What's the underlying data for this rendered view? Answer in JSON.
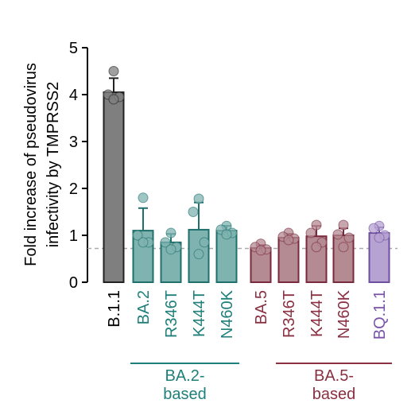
{
  "chart_data": {
    "type": "bar",
    "ylabel": "Fold increase of pseudovirus\ninfectivity by TMPRSS2",
    "ylim": [
      0,
      5
    ],
    "yticks": [
      "0",
      "1",
      "2",
      "3",
      "4",
      "5"
    ],
    "reference_line": 0.72,
    "categories": [
      {
        "label": "B.1.1",
        "mean": 4.05,
        "err": 0.3,
        "points": [
          4.5,
          4.0,
          3.95,
          3.9
        ],
        "color": "#7f7f7f",
        "edge": "#222222",
        "text": "#000000"
      },
      {
        "label": "BA.2",
        "mean": 1.1,
        "err": 0.48,
        "points": [
          1.8,
          1.0,
          0.85,
          0.85
        ],
        "color": "#7fb3b0",
        "edge": "#1f6f6c",
        "text": "#1f7f7a"
      },
      {
        "label": "R346T",
        "mean": 0.85,
        "err": 0.18,
        "points": [
          1.05,
          0.85,
          0.75,
          0.7
        ],
        "color": "#7fb3b0",
        "edge": "#1f6f6c",
        "text": "#1f7f7a"
      },
      {
        "label": "K444T",
        "mean": 1.12,
        "err": 0.58,
        "points": [
          1.78,
          1.5,
          0.85,
          0.6
        ],
        "color": "#7fb3b0",
        "edge": "#1f6f6c",
        "text": "#1f7f7a"
      },
      {
        "label": "N460K",
        "mean": 1.1,
        "err": 0.1,
        "points": [
          1.2,
          1.12,
          1.05,
          1.02
        ],
        "color": "#7fb3b0",
        "edge": "#1f6f6c",
        "text": "#1f7f7a"
      },
      {
        "label": "BA.5",
        "mean": 0.73,
        "err": 0.06,
        "points": [
          0.82,
          0.75,
          0.7,
          0.68
        ],
        "color": "#b48a93",
        "edge": "#7a2a3c",
        "text": "#8a3042"
      },
      {
        "label": "R346T",
        "mean": 0.95,
        "err": 0.08,
        "points": [
          1.05,
          0.97,
          0.93,
          0.9
        ],
        "color": "#b48a93",
        "edge": "#7a2a3c",
        "text": "#8a3042"
      },
      {
        "label": "K444T",
        "mean": 0.98,
        "err": 0.22,
        "points": [
          1.22,
          1.05,
          0.85,
          0.75
        ],
        "color": "#b48a93",
        "edge": "#7a2a3c",
        "text": "#8a3042"
      },
      {
        "label": "N460K",
        "mean": 1.0,
        "err": 0.15,
        "points": [
          1.22,
          1.02,
          0.95,
          0.75
        ],
        "color": "#b48a93",
        "edge": "#7a2a3c",
        "text": "#8a3042"
      },
      {
        "label": "BQ.1.1",
        "mean": 1.05,
        "err": 0.12,
        "points": [
          1.2,
          1.15,
          1.0,
          0.95
        ],
        "color": "#b7a3d1",
        "edge": "#6e4e9e",
        "text": "#7a54a8"
      }
    ],
    "groups": [
      {
        "label": "BA.2-\nbased",
        "from": 1,
        "to": 4,
        "color": "#1f7f7a"
      },
      {
        "label": "BA.5-\nbased",
        "from": 6,
        "to": 9,
        "color": "#8a3042"
      }
    ]
  }
}
